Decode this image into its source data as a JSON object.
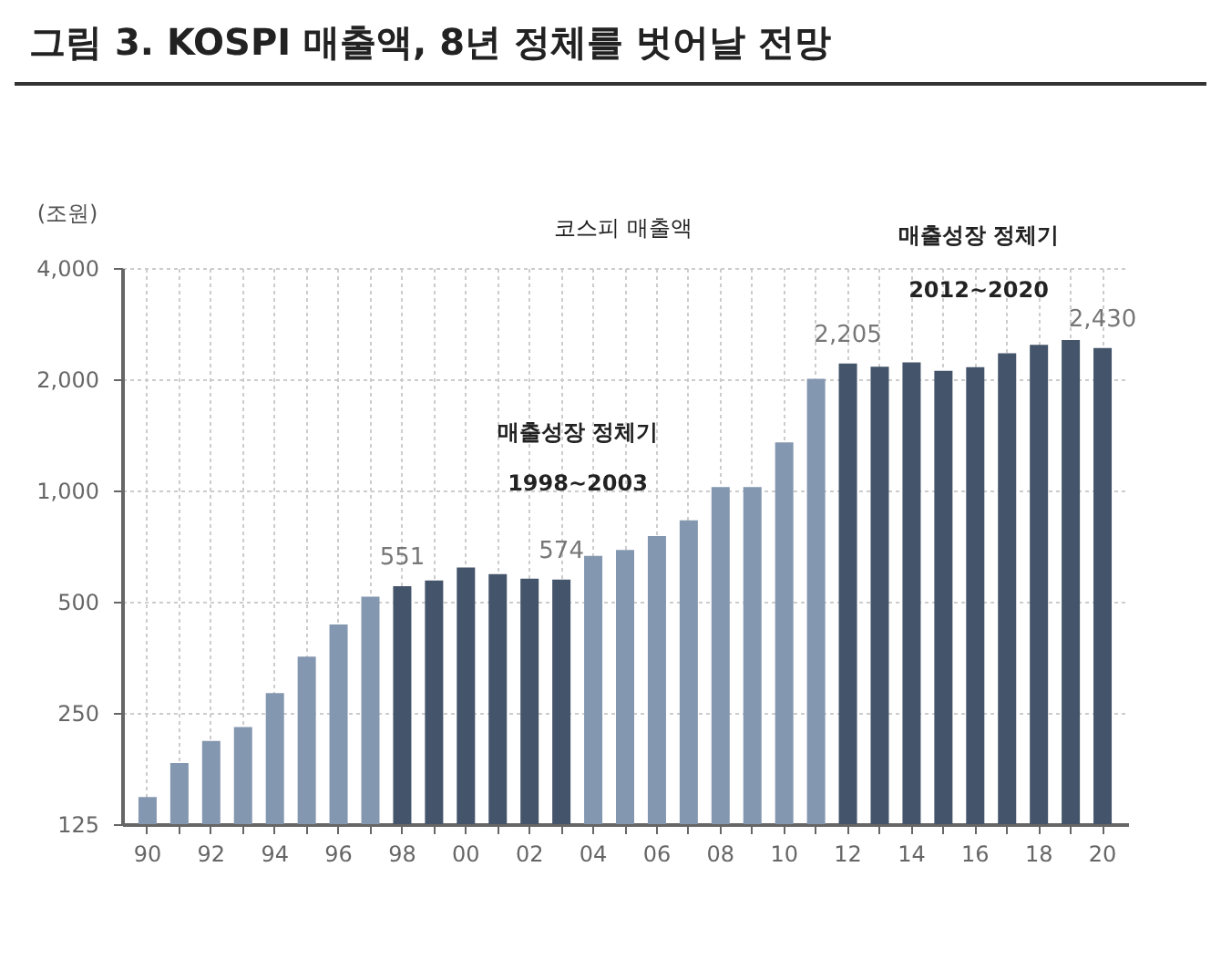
{
  "chart_data": {
    "type": "bar",
    "title": "그림 3. KOSPI 매출액, 8년 정체를 벗어날 전망",
    "ylabel": "(조원)",
    "categories": [
      "90",
      null,
      "92",
      null,
      "94",
      null,
      "96",
      null,
      "98",
      null,
      "00",
      null,
      "02",
      null,
      "04",
      null,
      "06",
      null,
      "08",
      null,
      "10",
      null,
      "12",
      null,
      "14",
      null,
      "16",
      null,
      "18",
      null,
      "20"
    ],
    "series": [
      {
        "colors": [
          "#8497b0",
          "#8497b0",
          "#8497b0",
          "#8497b0",
          "#8497b0",
          "#8497b0",
          "#8497b0",
          "#8497b0",
          "#44546a",
          "#44546a",
          "#44546a",
          "#44546a",
          "#44546a",
          "#44546a",
          "#8497b0",
          "#8497b0",
          "#8497b0",
          "#8497b0",
          "#8497b0",
          "#8497b0",
          "#8497b0",
          "#8497b0",
          "#44546a",
          "#44546a",
          "#44546a",
          "#44546a",
          "#44546a",
          "#44546a",
          "#44546a",
          "#44546a",
          "#44546a"
        ],
        "values": [
          148,
          183,
          210,
          229,
          283,
          355,
          434,
          516,
          551,
          571,
          619,
          594,
          577,
          574,
          665,
          690,
          753,
          830,
          1022,
          1022,
          1350,
          2006,
          2205,
          2164,
          2221,
          2107,
          2155,
          2350,
          2478,
          2553,
          2430
        ],
        "value_labels": [
          null,
          null,
          null,
          null,
          null,
          null,
          null,
          null,
          "551",
          null,
          null,
          null,
          null,
          "574",
          null,
          null,
          null,
          null,
          null,
          null,
          null,
          null,
          "2,205",
          null,
          null,
          null,
          null,
          null,
          null,
          null,
          "2,430"
        ]
      }
    ],
    "log": "y",
    "ylim": [
      125,
      4000
    ],
    "yticks": [
      {
        "value": 125,
        "label": "125"
      },
      {
        "value": 250,
        "label": "250"
      },
      {
        "value": 500,
        "label": "500"
      },
      {
        "value": 1000,
        "label": "1,000"
      },
      {
        "value": 2000,
        "label": "2,000"
      },
      {
        "value": 4000,
        "label": "4,000"
      }
    ],
    "grid": true,
    "annotations": [
      "코스피 매출액",
      "매출성장 정체기",
      "1998~2003",
      "매출성장 정체기",
      "2012~2020"
    ]
  }
}
